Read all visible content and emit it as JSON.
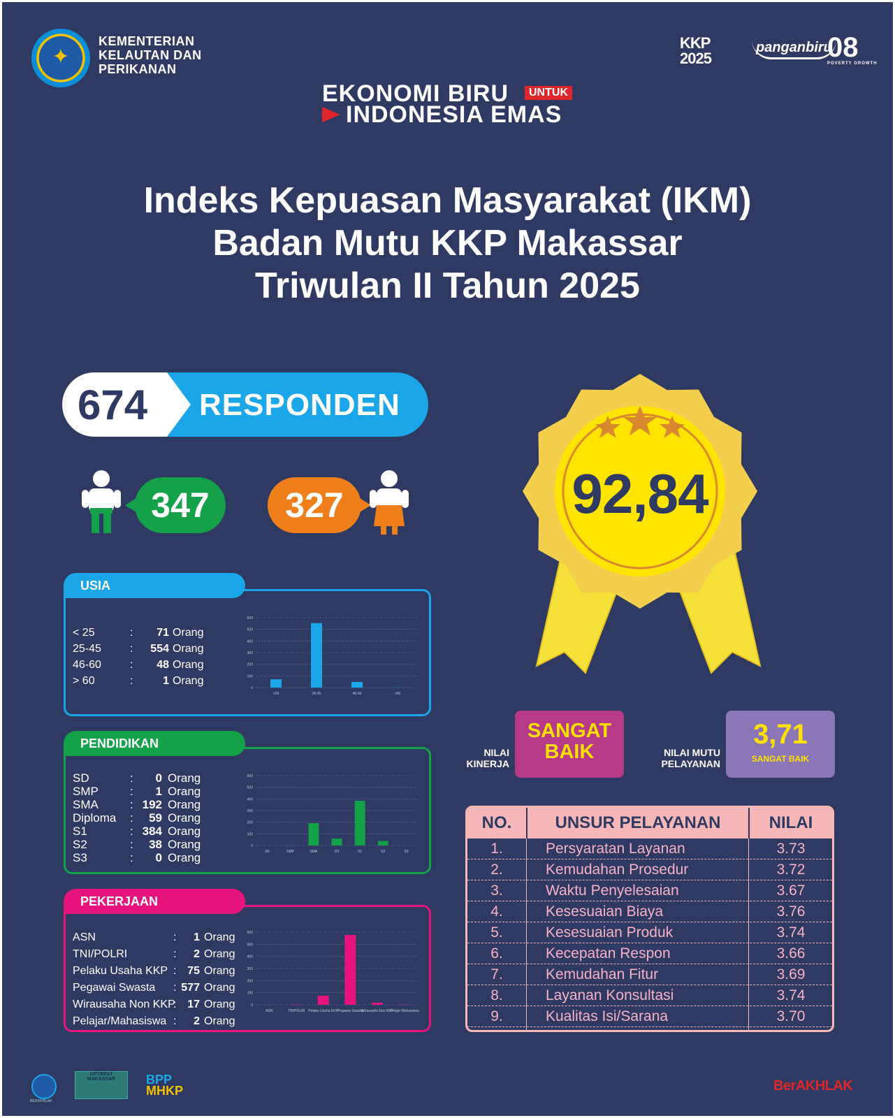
{
  "header": {
    "ministry_lines": [
      "KEMENTERIAN",
      "KELAUTAN DAN",
      "PERIKANAN"
    ],
    "brand_kkp": "KKP 2025",
    "brand_pangan": "panganbiru",
    "brand_08": "08",
    "brand_08_sub": "POVERTY  GROWTH",
    "tagline_line1": "EKONOMI BIRU",
    "tagline_untuk": "UNTUK",
    "tagline_line2": "INDONESIA EMAS"
  },
  "title_lines": [
    "Indeks Kepuasan Masyarakat (IKM)",
    "Badan Mutu KKP Makassar",
    "Triwulan II Tahun 2025"
  ],
  "responden": {
    "total": "674",
    "label": "RESPONDEN",
    "male": "347",
    "female": "327"
  },
  "usia": {
    "title": "USIA",
    "rows": [
      {
        "label": "< 25",
        "sep": ":",
        "value": "71",
        "unit": "Orang"
      },
      {
        "label": "25-45",
        "sep": ":",
        "value": "554",
        "unit": "Orang"
      },
      {
        "label": "46-60",
        "sep": ":",
        "value": "48",
        "unit": "Orang"
      },
      {
        "label": "> 60",
        "sep": ":",
        "value": "1",
        "unit": "Orang"
      }
    ]
  },
  "pendidikan": {
    "title": "PENDIDIKAN",
    "rows": [
      {
        "label": "SD",
        "sep": ":",
        "value": "0",
        "unit": "Orang"
      },
      {
        "label": "SMP",
        "sep": ":",
        "value": "1",
        "unit": "Orang"
      },
      {
        "label": "SMA",
        "sep": ":",
        "value": "192",
        "unit": "Orang"
      },
      {
        "label": "Diploma",
        "sep": ":",
        "value": "59",
        "unit": "Orang"
      },
      {
        "label": "S1",
        "sep": ":",
        "value": "384",
        "unit": "Orang"
      },
      {
        "label": "S2",
        "sep": ":",
        "value": "38",
        "unit": "Orang"
      },
      {
        "label": "S3",
        "sep": ":",
        "value": "0",
        "unit": "Orang"
      }
    ]
  },
  "pekerjaan": {
    "title": "PEKERJAAN",
    "rows": [
      {
        "label": "ASN",
        "sep": ":",
        "value": "1",
        "unit": "Orang"
      },
      {
        "label": "TNI/POLRI",
        "sep": ":",
        "value": "2",
        "unit": "Orang"
      },
      {
        "label": "Pelaku Usaha KKP",
        "sep": ":",
        "value": "75",
        "unit": "Orang"
      },
      {
        "label": "Pegawai Swasta",
        "sep": ":",
        "value": "577",
        "unit": "Orang"
      },
      {
        "label": "Wirausaha Non KKP",
        "sep": ":",
        "value": "17",
        "unit": "Orang"
      },
      {
        "label": "Pelajar/Mahasiswa",
        "sep": ":",
        "value": "2",
        "unit": "Orang"
      }
    ]
  },
  "chart_data": [
    {
      "type": "bar",
      "categories": [
        "<25",
        "25-45",
        "46-60",
        ">60"
      ],
      "values": [
        71,
        554,
        48,
        1
      ],
      "yticks": [
        "0",
        "100",
        "200",
        "300",
        "400",
        "500",
        "600"
      ],
      "ylim": [
        0,
        600
      ],
      "color": "#1aa6e8"
    },
    {
      "type": "bar",
      "categories": [
        "SD",
        "SMP",
        "SMA",
        "D3",
        "S1",
        "S2",
        "S3"
      ],
      "values": [
        0,
        1,
        192,
        59,
        384,
        38,
        0
      ],
      "yticks": [
        "0",
        "100",
        "200",
        "300",
        "400",
        "500",
        "600"
      ],
      "ylim": [
        0,
        600
      ],
      "color": "#14a14a"
    },
    {
      "type": "bar",
      "categories": [
        "ASN",
        "TNI/POLRI",
        "Pelaku Usaha KKP",
        "Pegawai Swasta",
        "Wirausaha Non KKP",
        "Pelajar Mahasiswa"
      ],
      "values": [
        1,
        2,
        75,
        577,
        17,
        2
      ],
      "yticks": [
        "0",
        "100",
        "200",
        "300",
        "400",
        "500",
        "600"
      ],
      "ylim": [
        0,
        600
      ],
      "color": "#e6157e"
    }
  ],
  "ikm": {
    "score": "92,84",
    "nilai_kinerja_label": [
      "NILAI",
      "KINERJA"
    ],
    "nilai_kinerja_value": [
      "SANGAT",
      "BAIK"
    ],
    "nilai_mutu_label": [
      "NILAI MUTU",
      "PELAYANAN"
    ],
    "nilai_mutu_value": "3,71",
    "nilai_mutu_sub": "SANGAT BAIK"
  },
  "table": {
    "headers": [
      "NO.",
      "UNSUR PELAYANAN",
      "NILAI"
    ],
    "rows": [
      {
        "no": "1.",
        "unsur": "Persyaratan Layanan",
        "nilai": "3.73"
      },
      {
        "no": "2.",
        "unsur": "Kemudahan Prosedur",
        "nilai": "3.72"
      },
      {
        "no": "3.",
        "unsur": "Waktu Penyelesaian",
        "nilai": "3.67"
      },
      {
        "no": "4.",
        "unsur": "Kesesuaian Biaya",
        "nilai": "3.76"
      },
      {
        "no": "5.",
        "unsur": "Kesesuaian Produk",
        "nilai": "3.74"
      },
      {
        "no": "6.",
        "unsur": "Kecepatan Respon",
        "nilai": "3.66"
      },
      {
        "no": "7.",
        "unsur": "Kemudahan Fitur",
        "nilai": "3.69"
      },
      {
        "no": "8.",
        "unsur": "Layanan Konsultasi",
        "nilai": "3.74"
      },
      {
        "no": "9.",
        "unsur": "Kualitas Isi/Sarana",
        "nilai": "3.70"
      }
    ]
  },
  "footer": {
    "logo1": "BERAKHLAK",
    "logo2": "OPTIMIST MAKASSAR",
    "logo3_a": "BPP",
    "logo3_b": "MHKP",
    "berakhlak": "BerAKHLAK"
  }
}
